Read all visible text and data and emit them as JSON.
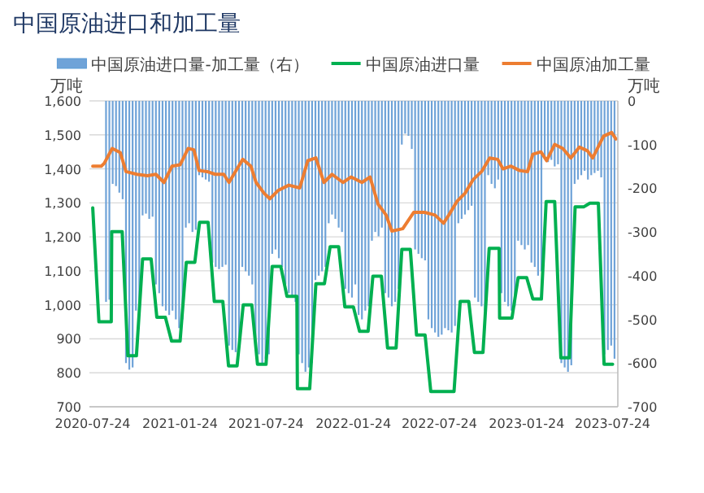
{
  "chart_data": {
    "type": "line",
    "title": "中国原油进口和加工量",
    "ylabel": "万吨",
    "y2label": "万吨",
    "legend": "top",
    "grid": "y",
    "xlim": [
      "2020-07-17",
      "2023-08-04"
    ],
    "xticks": [
      "2020-07-24",
      "2021-01-24",
      "2021-07-24",
      "2022-01-24",
      "2022-07-24",
      "2023-01-24",
      "2023-07-24"
    ],
    "ylim": [
      700,
      1600
    ],
    "yticks": [
      700,
      800,
      900,
      {
        "value": 1000,
        "label": "1,000"
      },
      {
        "value": 1100,
        "label": "1,100"
      },
      {
        "value": 1200,
        "label": "1,200"
      },
      {
        "value": 1300,
        "label": "1,300"
      },
      {
        "value": 1400,
        "label": "1,400"
      },
      {
        "value": 1500,
        "label": "1,500"
      },
      {
        "value": 1600,
        "label": "1,600"
      }
    ],
    "y2lim": [
      -700,
      0
    ],
    "y2ticks": [
      0,
      -100,
      -200,
      -300,
      -400,
      -500,
      -600,
      -700
    ],
    "x": [
      "2020-08-21",
      "2020-08-28",
      "2020-09-04",
      "2020-09-11",
      "2020-09-18",
      "2020-09-25",
      "2020-10-02",
      "2020-10-09",
      "2020-10-16",
      "2020-10-23",
      "2020-10-30",
      "2020-11-06",
      "2020-11-13",
      "2020-11-20",
      "2020-11-27",
      "2020-12-04",
      "2020-12-11",
      "2020-12-18",
      "2020-12-25",
      "2021-01-01",
      "2021-01-08",
      "2021-01-15",
      "2021-01-22",
      "2021-01-29",
      "2021-02-05",
      "2021-02-12",
      "2021-02-19",
      "2021-02-26",
      "2021-03-05",
      "2021-03-12",
      "2021-03-19",
      "2021-03-26",
      "2021-04-02",
      "2021-04-09",
      "2021-04-16",
      "2021-04-23",
      "2021-04-30",
      "2021-05-07",
      "2021-05-14",
      "2021-05-21",
      "2021-05-28",
      "2021-06-04",
      "2021-06-11",
      "2021-06-18",
      "2021-06-25",
      "2021-07-02",
      "2021-07-09",
      "2021-07-16",
      "2021-07-23",
      "2021-07-30",
      "2021-08-06",
      "2021-08-13",
      "2021-08-20",
      "2021-08-27",
      "2021-09-03",
      "2021-09-10",
      "2021-09-17",
      "2021-09-24",
      "2021-10-01",
      "2021-10-08",
      "2021-10-15",
      "2021-10-22",
      "2021-10-29",
      "2021-11-05",
      "2021-11-12",
      "2021-11-19",
      "2021-11-26",
      "2021-12-03",
      "2021-12-10",
      "2021-12-17",
      "2021-12-24",
      "2021-12-31",
      "2022-01-07",
      "2022-01-14",
      "2022-01-21",
      "2022-01-28",
      "2022-02-04",
      "2022-02-11",
      "2022-02-18",
      "2022-02-25",
      "2022-03-04",
      "2022-03-11",
      "2022-03-18",
      "2022-03-25",
      "2022-04-01",
      "2022-04-08",
      "2022-04-15",
      "2022-04-22",
      "2022-04-29",
      "2022-05-06",
      "2022-05-13",
      "2022-05-20",
      "2022-05-27",
      "2022-06-03",
      "2022-06-10",
      "2022-06-17",
      "2022-06-24",
      "2022-07-01",
      "2022-07-08",
      "2022-07-15",
      "2022-07-22",
      "2022-07-29",
      "2022-08-05",
      "2022-08-12",
      "2022-08-19",
      "2022-08-26",
      "2022-09-02",
      "2022-09-09",
      "2022-09-16",
      "2022-09-23",
      "2022-09-30",
      "2022-10-07",
      "2022-10-14",
      "2022-10-21",
      "2022-10-28",
      "2022-11-04",
      "2022-11-11",
      "2022-11-18",
      "2022-11-25",
      "2022-12-02",
      "2022-12-09",
      "2022-12-16",
      "2022-12-23",
      "2022-12-30",
      "2023-01-06",
      "2023-01-13",
      "2023-01-20",
      "2023-01-27",
      "2023-02-03",
      "2023-02-10",
      "2023-02-17",
      "2023-02-24",
      "2023-03-03",
      "2023-03-10",
      "2023-03-17",
      "2023-03-24",
      "2023-03-31",
      "2023-04-07",
      "2023-04-14",
      "2023-04-21",
      "2023-04-28",
      "2023-05-05",
      "2023-05-12",
      "2023-05-19",
      "2023-05-26",
      "2023-06-02",
      "2023-06-09",
      "2023-06-16",
      "2023-06-23",
      "2023-06-30",
      "2023-07-07",
      "2023-07-14",
      "2023-07-21",
      "2023-07-28"
    ],
    "series": [
      {
        "name": "中国原油进口量-加工量（右）",
        "type": "bar",
        "axis": "y2",
        "color": "#6fa3d8",
        "values": [
          -460,
          -455,
          -190,
          -195,
          -210,
          -225,
          -600,
          -615,
          -610,
          -480,
          -470,
          -262,
          -258,
          -270,
          -265,
          -420,
          -440,
          -470,
          -480,
          -490,
          -480,
          -500,
          -520,
          -500,
          -290,
          -280,
          -300,
          -295,
          -170,
          -175,
          -180,
          -185,
          -370,
          -380,
          -385,
          -380,
          -375,
          -560,
          -570,
          -575,
          -565,
          -380,
          -390,
          -400,
          -420,
          -560,
          -580,
          -600,
          -590,
          -580,
          -350,
          -340,
          -360,
          -380,
          -420,
          -440,
          -450,
          -460,
          -580,
          -600,
          -620,
          -610,
          -600,
          -410,
          -400,
          -390,
          -380,
          -280,
          -260,
          -270,
          -290,
          -300,
          -430,
          -440,
          -450,
          -420,
          -490,
          -500,
          -480,
          -470,
          -320,
          -300,
          -310,
          -290,
          -440,
          -450,
          -470,
          -460,
          -430,
          -100,
          -75,
          -80,
          -110,
          -340,
          -350,
          -360,
          -365,
          -500,
          -520,
          -530,
          -540,
          -535,
          -520,
          -525,
          -530,
          -515,
          -280,
          -270,
          -260,
          -250,
          -240,
          -450,
          -460,
          -470,
          -480,
          -170,
          -190,
          -200,
          -180,
          -440,
          -460,
          -470,
          -480,
          -470,
          -320,
          -330,
          -340,
          -330,
          -370,
          -380,
          -400,
          -390,
          -130,
          -140,
          -135,
          -150,
          -145,
          -600,
          -610,
          -620,
          -605,
          -190,
          -180,
          -170,
          -160,
          -180,
          -170,
          -165,
          -160,
          -175,
          -580,
          -570,
          -560,
          -590
        ]
      },
      {
        "name": "中国原油进口量",
        "color": "#00b050",
        "x": [
          "2020-07-24",
          "2020-08-06",
          "2020-09-01",
          "2020-09-02",
          "2020-09-24",
          "2020-10-06",
          "2020-10-24",
          "2020-11-06",
          "2020-11-24",
          "2020-12-06",
          "2020-12-24",
          "2021-01-06",
          "2021-01-24",
          "2021-02-06",
          "2021-02-24",
          "2021-03-06",
          "2021-03-24",
          "2021-04-06",
          "2021-04-24",
          "2021-05-06",
          "2021-05-24",
          "2021-06-06",
          "2021-06-24",
          "2021-07-06",
          "2021-07-24",
          "2021-08-06",
          "2021-08-24",
          "2021-09-06",
          "2021-09-27",
          "2021-09-28",
          "2021-10-24",
          "2021-11-06",
          "2021-11-24",
          "2021-12-06",
          "2021-12-24",
          "2022-01-06",
          "2022-01-24",
          "2022-02-06",
          "2022-02-24",
          "2022-03-06",
          "2022-03-24",
          "2022-04-06",
          "2022-04-24",
          "2022-05-06",
          "2022-05-24",
          "2022-06-06",
          "2022-06-24",
          "2022-07-06",
          "2022-07-24",
          "2022-08-06",
          "2022-08-24",
          "2022-09-06",
          "2022-09-24",
          "2022-10-06",
          "2022-10-24",
          "2022-11-06",
          "2022-11-27",
          "2022-11-28",
          "2022-12-24",
          "2023-01-06",
          "2023-01-24",
          "2023-02-06",
          "2023-02-24",
          "2023-03-06",
          "2023-03-24",
          "2023-04-06",
          "2023-04-24",
          "2023-05-06",
          "2023-05-24",
          "2023-06-06",
          "2023-06-24",
          "2023-07-06",
          "2023-07-24"
        ],
        "values": [
          1285,
          950,
          950,
          1215,
          1215,
          850,
          850,
          1135,
          1135,
          963,
          963,
          893,
          893,
          1125,
          1125,
          1243,
          1243,
          1010,
          1010,
          820,
          820,
          1000,
          1000,
          825,
          825,
          1113,
          1113,
          1025,
          1025,
          753,
          753,
          1062,
          1062,
          1171,
          1171,
          994,
          994,
          922,
          922,
          1084,
          1084,
          873,
          873,
          1163,
          1163,
          911,
          911,
          745,
          745,
          745,
          745,
          1010,
          1010,
          860,
          860,
          1166,
          1166,
          961,
          961,
          1080,
          1080,
          1017,
          1017,
          1304,
          1304,
          844,
          844,
          1288,
          1288,
          1299,
          1299,
          825,
          825
        ]
      },
      {
        "name": "中国原油加工量",
        "color": "#ed7d31",
        "x": [
          "2020-07-24",
          "2020-08-11",
          "2020-08-17",
          "2020-09-03",
          "2020-09-20",
          "2020-10-02",
          "2020-10-25",
          "2020-11-16",
          "2020-12-04",
          "2020-12-21",
          "2021-01-07",
          "2021-01-24",
          "2021-02-10",
          "2021-02-22",
          "2021-03-05",
          "2021-03-22",
          "2021-04-08",
          "2021-04-26",
          "2021-05-07",
          "2021-05-24",
          "2021-06-05",
          "2021-06-22",
          "2021-07-03",
          "2021-07-20",
          "2021-08-01",
          "2021-08-18",
          "2021-09-10",
          "2021-10-03",
          "2021-10-20",
          "2021-11-06",
          "2021-11-23",
          "2021-12-10",
          "2022-01-02",
          "2022-01-19",
          "2022-02-11",
          "2022-02-28",
          "2022-03-17",
          "2022-04-03",
          "2022-04-15",
          "2022-05-08",
          "2022-05-31",
          "2022-06-23",
          "2022-07-15",
          "2022-08-02",
          "2022-08-13",
          "2022-08-30",
          "2022-09-16",
          "2022-10-03",
          "2022-10-21",
          "2022-11-07",
          "2022-11-24",
          "2022-12-05",
          "2022-12-22",
          "2023-01-09",
          "2023-01-26",
          "2023-02-06",
          "2023-02-23",
          "2023-03-07",
          "2023-03-24",
          "2023-04-10",
          "2023-04-27",
          "2023-05-15",
          "2023-06-01",
          "2023-06-12",
          "2023-07-05",
          "2023-07-22",
          "2023-07-31"
        ],
        "values": [
          1408,
          1408,
          1416,
          1460,
          1448,
          1392,
          1384,
          1380,
          1384,
          1360,
          1408,
          1412,
          1460,
          1456,
          1395,
          1392,
          1384,
          1384,
          1360,
          1400,
          1428,
          1408,
          1360,
          1328,
          1312,
          1336,
          1352,
          1344,
          1424,
          1432,
          1360,
          1384,
          1360,
          1376,
          1360,
          1376,
          1296,
          1264,
          1217,
          1224,
          1272,
          1272,
          1264,
          1240,
          1264,
          1304,
          1328,
          1368,
          1392,
          1432,
          1428,
          1400,
          1408,
          1395,
          1392,
          1443,
          1450,
          1424,
          1472,
          1460,
          1432,
          1464,
          1453,
          1432,
          1496,
          1507,
          1488
        ]
      }
    ]
  }
}
